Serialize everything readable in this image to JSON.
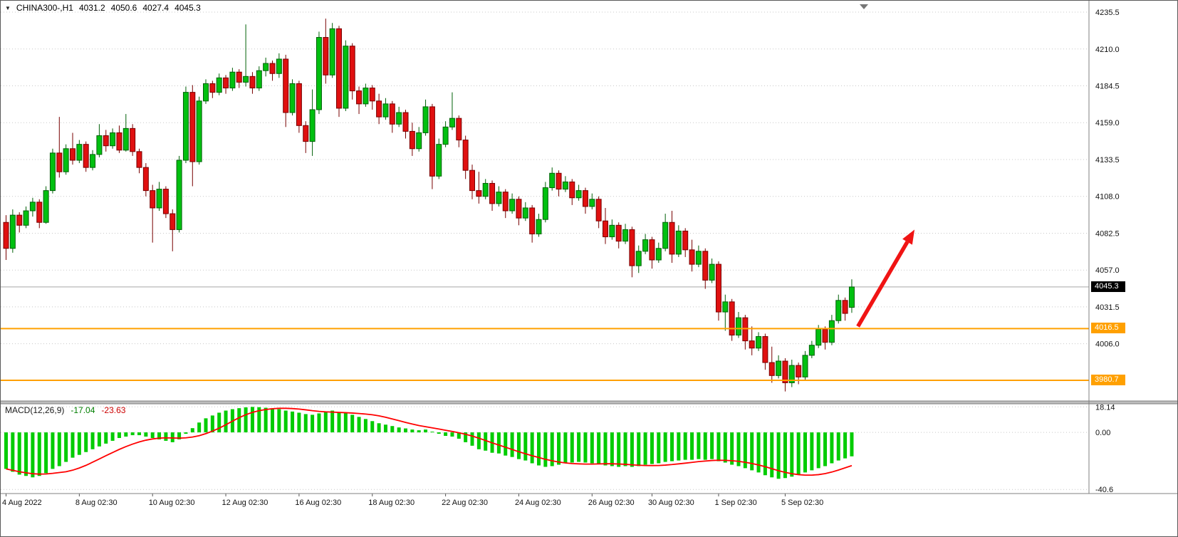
{
  "header": {
    "dropdown_icon": "▼",
    "symbol_timeframe": "CHINA300-,H1",
    "open": "4031.2",
    "high": "4050.6",
    "low": "4027.4",
    "close": "4045.3",
    "shift_marker_icon": "▼"
  },
  "indicator_panel": {
    "label": "MACD(12,26,9)",
    "macd_value": "-17.04",
    "signal_value": "-23.63"
  },
  "price_axis": {
    "current_tag": {
      "text": "4045.3",
      "bg": "#000000",
      "fg": "#ffffff"
    },
    "line_tags": [
      {
        "text": "4016.5",
        "price": 4016.5,
        "bg": "#ffa000",
        "fg": "#ffffff"
      },
      {
        "text": "3980.7",
        "price": 3980.7,
        "bg": "#ffa000",
        "fg": "#ffffff"
      }
    ]
  },
  "chart_data": {
    "type": "candlestick",
    "symbol": "CHINA300-",
    "timeframe": "H1",
    "ohlc_current": {
      "open": 4031.2,
      "high": 4050.6,
      "low": 4027.4,
      "close": 4045.3
    },
    "current_price": 4045.3,
    "price_range": {
      "top": 4243.4,
      "bottom": 3966.9
    },
    "grid_step": 25.5,
    "price_axis_ticks": [
      "4235.5",
      "4210.0",
      "4184.5",
      "4159.0",
      "4133.5",
      "4108.0",
      "4082.5",
      "4057.0",
      "4031.5",
      "4006.0"
    ],
    "time_ticks": [
      {
        "text": "4 Aug 2022",
        "index": 0
      },
      {
        "text": "8 Aug 02:30",
        "index": 11
      },
      {
        "text": "10 Aug 02:30",
        "index": 22
      },
      {
        "text": "12 Aug 02:30",
        "index": 33
      },
      {
        "text": "16 Aug 02:30",
        "index": 44
      },
      {
        "text": "18 Aug 02:30",
        "index": 55
      },
      {
        "text": "22 Aug 02:30",
        "index": 66
      },
      {
        "text": "24 Aug 02:30",
        "index": 77
      },
      {
        "text": "26 Aug 02:30",
        "index": 88
      },
      {
        "text": "30 Aug 02:30",
        "index": 97
      },
      {
        "text": "1 Sep 02:30",
        "index": 107
      },
      {
        "text": "5 Sep 02:30",
        "index": 117
      }
    ],
    "candles": [
      [
        4090,
        4095,
        4064,
        4072
      ],
      [
        4072,
        4099,
        4069,
        4095
      ],
      [
        4095,
        4097,
        4083,
        4088
      ],
      [
        4088,
        4101,
        4086,
        4098
      ],
      [
        4098,
        4107,
        4094,
        4104
      ],
      [
        4104,
        4106,
        4086,
        4090
      ],
      [
        4090,
        4115,
        4089,
        4112
      ],
      [
        4112,
        4141,
        4110,
        4138
      ],
      [
        4138,
        4163,
        4121,
        4125
      ],
      [
        4125,
        4144,
        4123,
        4141
      ],
      [
        4141,
        4152,
        4130,
        4133
      ],
      [
        4133,
        4147,
        4131,
        4144
      ],
      [
        4144,
        4146,
        4125,
        4128
      ],
      [
        4128,
        4140,
        4126,
        4137
      ],
      [
        4137,
        4158,
        4135,
        4150
      ],
      [
        4150,
        4154,
        4139,
        4143
      ],
      [
        4143,
        4155,
        4141,
        4152
      ],
      [
        4152,
        4157,
        4138,
        4140
      ],
      [
        4140,
        4165,
        4139,
        4155
      ],
      [
        4155,
        4158,
        4136,
        4139
      ],
      [
        4139,
        4141,
        4124,
        4128
      ],
      [
        4128,
        4131,
        4108,
        4112
      ],
      [
        4112,
        4116,
        4076,
        4100
      ],
      [
        4100,
        4118,
        4098,
        4113
      ],
      [
        4113,
        4115,
        4093,
        4096
      ],
      [
        4096,
        4099,
        4070,
        4085
      ],
      [
        4085,
        4136,
        4083,
        4133
      ],
      [
        4133,
        4184,
        4131,
        4180
      ],
      [
        4180,
        4185,
        4115,
        4132
      ],
      [
        4132,
        4177,
        4130,
        4174
      ],
      [
        4174,
        4189,
        4172,
        4186
      ],
      [
        4186,
        4188,
        4176,
        4180
      ],
      [
        4180,
        4193,
        4178,
        4190
      ],
      [
        4190,
        4192,
        4179,
        4183
      ],
      [
        4183,
        4197,
        4181,
        4194
      ],
      [
        4194,
        4196,
        4183,
        4187
      ],
      [
        4187,
        4227,
        4184,
        4191
      ],
      [
        4191,
        4194,
        4179,
        4183
      ],
      [
        4183,
        4198,
        4181,
        4195
      ],
      [
        4195,
        4204,
        4191,
        4200
      ],
      [
        4200,
        4202,
        4188,
        4193
      ],
      [
        4193,
        4207,
        4190,
        4203
      ],
      [
        4203,
        4206,
        4156,
        4166
      ],
      [
        4166,
        4189,
        4164,
        4186
      ],
      [
        4186,
        4188,
        4152,
        4157
      ],
      [
        4157,
        4160,
        4138,
        4146
      ],
      [
        4146,
        4182,
        4136,
        4168
      ],
      [
        4168,
        4222,
        4165,
        4218
      ],
      [
        4218,
        4231,
        4186,
        4192
      ],
      [
        4192,
        4228,
        4190,
        4224
      ],
      [
        4224,
        4226,
        4163,
        4169
      ],
      [
        4169,
        4216,
        4167,
        4212
      ],
      [
        4212,
        4214,
        4175,
        4181
      ],
      [
        4181,
        4184,
        4165,
        4172
      ],
      [
        4172,
        4186,
        4170,
        4183
      ],
      [
        4183,
        4185,
        4168,
        4174
      ],
      [
        4174,
        4179,
        4158,
        4163
      ],
      [
        4163,
        4176,
        4161,
        4172
      ],
      [
        4172,
        4174,
        4152,
        4158
      ],
      [
        4158,
        4170,
        4156,
        4166
      ],
      [
        4166,
        4168,
        4148,
        4153
      ],
      [
        4153,
        4159,
        4136,
        4141
      ],
      [
        4141,
        4156,
        4139,
        4152
      ],
      [
        4152,
        4175,
        4150,
        4170
      ],
      [
        4170,
        4172,
        4113,
        4122
      ],
      [
        4122,
        4148,
        4120,
        4144
      ],
      [
        4144,
        4160,
        4142,
        4156
      ],
      [
        4156,
        4180,
        4154,
        4162
      ],
      [
        4162,
        4164,
        4142,
        4147
      ],
      [
        4147,
        4150,
        4120,
        4126
      ],
      [
        4126,
        4130,
        4106,
        4112
      ],
      [
        4112,
        4125,
        4103,
        4108
      ],
      [
        4108,
        4120,
        4106,
        4117
      ],
      [
        4117,
        4119,
        4098,
        4103
      ],
      [
        4103,
        4115,
        4101,
        4111
      ],
      [
        4111,
        4113,
        4093,
        4098
      ],
      [
        4098,
        4110,
        4096,
        4106
      ],
      [
        4106,
        4108,
        4088,
        4093
      ],
      [
        4093,
        4104,
        4091,
        4100
      ],
      [
        4100,
        4102,
        4076,
        4082
      ],
      [
        4082,
        4096,
        4080,
        4092
      ],
      [
        4092,
        4118,
        4090,
        4114
      ],
      [
        4114,
        4128,
        4112,
        4124
      ],
      [
        4124,
        4126,
        4108,
        4113
      ],
      [
        4113,
        4122,
        4111,
        4118
      ],
      [
        4118,
        4120,
        4102,
        4107
      ],
      [
        4107,
        4116,
        4105,
        4112
      ],
      [
        4112,
        4114,
        4096,
        4101
      ],
      [
        4101,
        4110,
        4099,
        4106
      ],
      [
        4106,
        4108,
        4086,
        4091
      ],
      [
        4091,
        4100,
        4075,
        4080
      ],
      [
        4080,
        4092,
        4078,
        4088
      ],
      [
        4088,
        4090,
        4072,
        4077
      ],
      [
        4077,
        4089,
        4075,
        4085
      ],
      [
        4085,
        4087,
        4052,
        4060
      ],
      [
        4060,
        4074,
        4055,
        4070
      ],
      [
        4070,
        4082,
        4068,
        4078
      ],
      [
        4078,
        4080,
        4058,
        4064
      ],
      [
        4064,
        4076,
        4062,
        4072
      ],
      [
        4072,
        4096,
        4070,
        4090
      ],
      [
        4090,
        4098,
        4062,
        4068
      ],
      [
        4068,
        4088,
        4066,
        4084
      ],
      [
        4084,
        4086,
        4066,
        4071
      ],
      [
        4071,
        4078,
        4056,
        4061
      ],
      [
        4061,
        4074,
        4059,
        4070
      ],
      [
        4070,
        4072,
        4044,
        4050
      ],
      [
        4050,
        4065,
        4048,
        4061
      ],
      [
        4061,
        4063,
        4022,
        4028
      ],
      [
        4028,
        4040,
        4015,
        4035
      ],
      [
        4035,
        4037,
        4008,
        4012
      ],
      [
        4012,
        4028,
        4010,
        4024
      ],
      [
        4024,
        4026,
        4002,
        4008
      ],
      [
        4008,
        4018,
        3998,
        4003
      ],
      [
        4003,
        4014,
        4001,
        4011
      ],
      [
        4011,
        4013,
        3988,
        3993
      ],
      [
        3993,
        4004,
        3979,
        3984
      ],
      [
        3984,
        3998,
        3982,
        3994
      ],
      [
        3994,
        3996,
        3973,
        3979
      ],
      [
        3979,
        3995,
        3976,
        3991
      ],
      [
        3991,
        3993,
        3978,
        3983
      ],
      [
        3983,
        4001,
        3981,
        3998
      ],
      [
        3998,
        4008,
        3996,
        4005
      ],
      [
        4005,
        4019,
        4003,
        4016
      ],
      [
        4016,
        4018,
        4002,
        4007
      ],
      [
        4007,
        4026,
        4005,
        4022
      ],
      [
        4022,
        4040,
        4020,
        4036
      ],
      [
        4036,
        4038,
        4022,
        4027
      ],
      [
        4031.2,
        4050.6,
        4027.4,
        4045.3
      ]
    ],
    "horizontal_lines": [
      {
        "price": 4016.5,
        "color": "#ffa000"
      },
      {
        "price": 3980.7,
        "color": "#ffa000"
      }
    ],
    "arrow_annotation": {
      "from_index": 128.3,
      "from_price": 4018,
      "to_index": 136.8,
      "to_price": 4085,
      "color": "#f01414"
    },
    "macd": {
      "params": "12,26,9",
      "signal_period": 9,
      "range": {
        "max": 19.8,
        "min": -42.5
      },
      "axis_ticks": [
        {
          "text": "18.14",
          "value": 18.14
        },
        {
          "text": "0.00",
          "value": 0
        },
        {
          "text": "-40.6",
          "value": -40.6
        }
      ],
      "last_macd": -17.04,
      "last_signal": -23.63,
      "histogram": [
        -26,
        -28,
        -30,
        -31,
        -32,
        -31,
        -29,
        -26,
        -24,
        -21,
        -18,
        -16,
        -14,
        -12,
        -10,
        -8,
        -6,
        -4,
        -3,
        -2,
        -2,
        -3,
        -4,
        -5,
        -6,
        -7,
        -5,
        -1,
        3,
        7,
        10,
        12,
        14,
        15.5,
        16.5,
        17.2,
        17.8,
        18.1,
        17.9,
        17.5,
        17,
        16.5,
        15.5,
        14.8,
        14,
        13,
        12.5,
        13.5,
        14.5,
        15.5,
        14.5,
        13.8,
        12.5,
        11,
        9.5,
        8,
        6.5,
        5.5,
        4.5,
        3.5,
        2.8,
        2,
        1.5,
        2,
        0.5,
        -1,
        -2.5,
        -3,
        -4.5,
        -7,
        -9.5,
        -12,
        -13,
        -14.5,
        -15,
        -16.5,
        -17.5,
        -19,
        -20,
        -22,
        -23.5,
        -24.5,
        -24,
        -23,
        -22,
        -21.5,
        -21,
        -21.5,
        -22,
        -22.5,
        -23.5,
        -24,
        -24.5,
        -24,
        -24.5,
        -24,
        -23,
        -22.5,
        -22,
        -21,
        -20.5,
        -20,
        -19.5,
        -19.5,
        -19,
        -19.5,
        -19,
        -20.5,
        -21.5,
        -23,
        -24,
        -25.5,
        -27,
        -28.5,
        -30.5,
        -32,
        -33,
        -32.5,
        -31.5,
        -30,
        -28.5,
        -27,
        -25.5,
        -24,
        -22,
        -20,
        -18.5,
        -17.04
      ]
    },
    "colors": {
      "bull": "#00c010",
      "bull_stroke": "#006008",
      "bear": "#e01010",
      "bear_stroke": "#780000",
      "histogram": "#00cc00",
      "signal": "#ff0000",
      "grid": "#c8c8c8",
      "current_line": "#a8a8a8",
      "frame": "#808080"
    }
  }
}
